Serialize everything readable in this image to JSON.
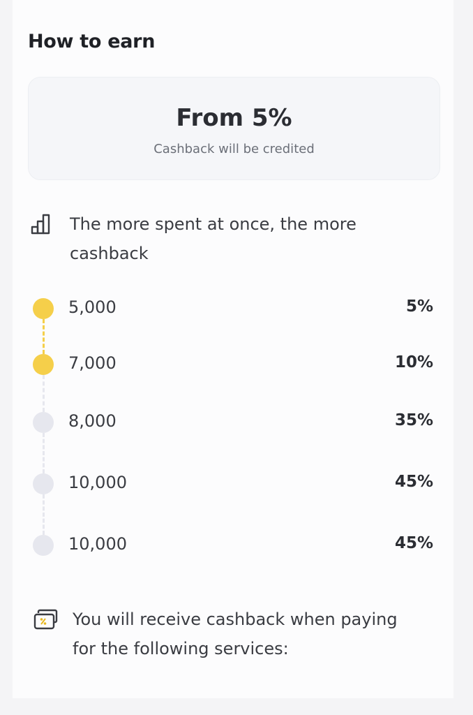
{
  "section_title": "How to earn",
  "hero": {
    "value": "From 5%",
    "subtitle": "Cashback will be credited"
  },
  "tiers_info": {
    "icon": "bar-chart-icon",
    "text": "The more spent at once, the more cashback"
  },
  "tiers": [
    {
      "amount": "5,000",
      "percent": "5%",
      "reached": true
    },
    {
      "amount": "7,000",
      "percent": "10%",
      "reached": true
    },
    {
      "amount": "8,000",
      "percent": "35%",
      "reached": false
    },
    {
      "amount": "10,000",
      "percent": "45%",
      "reached": false
    },
    {
      "amount": "10,000",
      "percent": "45%",
      "reached": false
    }
  ],
  "services_info": {
    "icon": "cards-percent-icon",
    "text": "You will receive cashback when paying for the following services:"
  },
  "colors": {
    "active": "#f5cf4a",
    "inactive": "#e6e7ee"
  }
}
